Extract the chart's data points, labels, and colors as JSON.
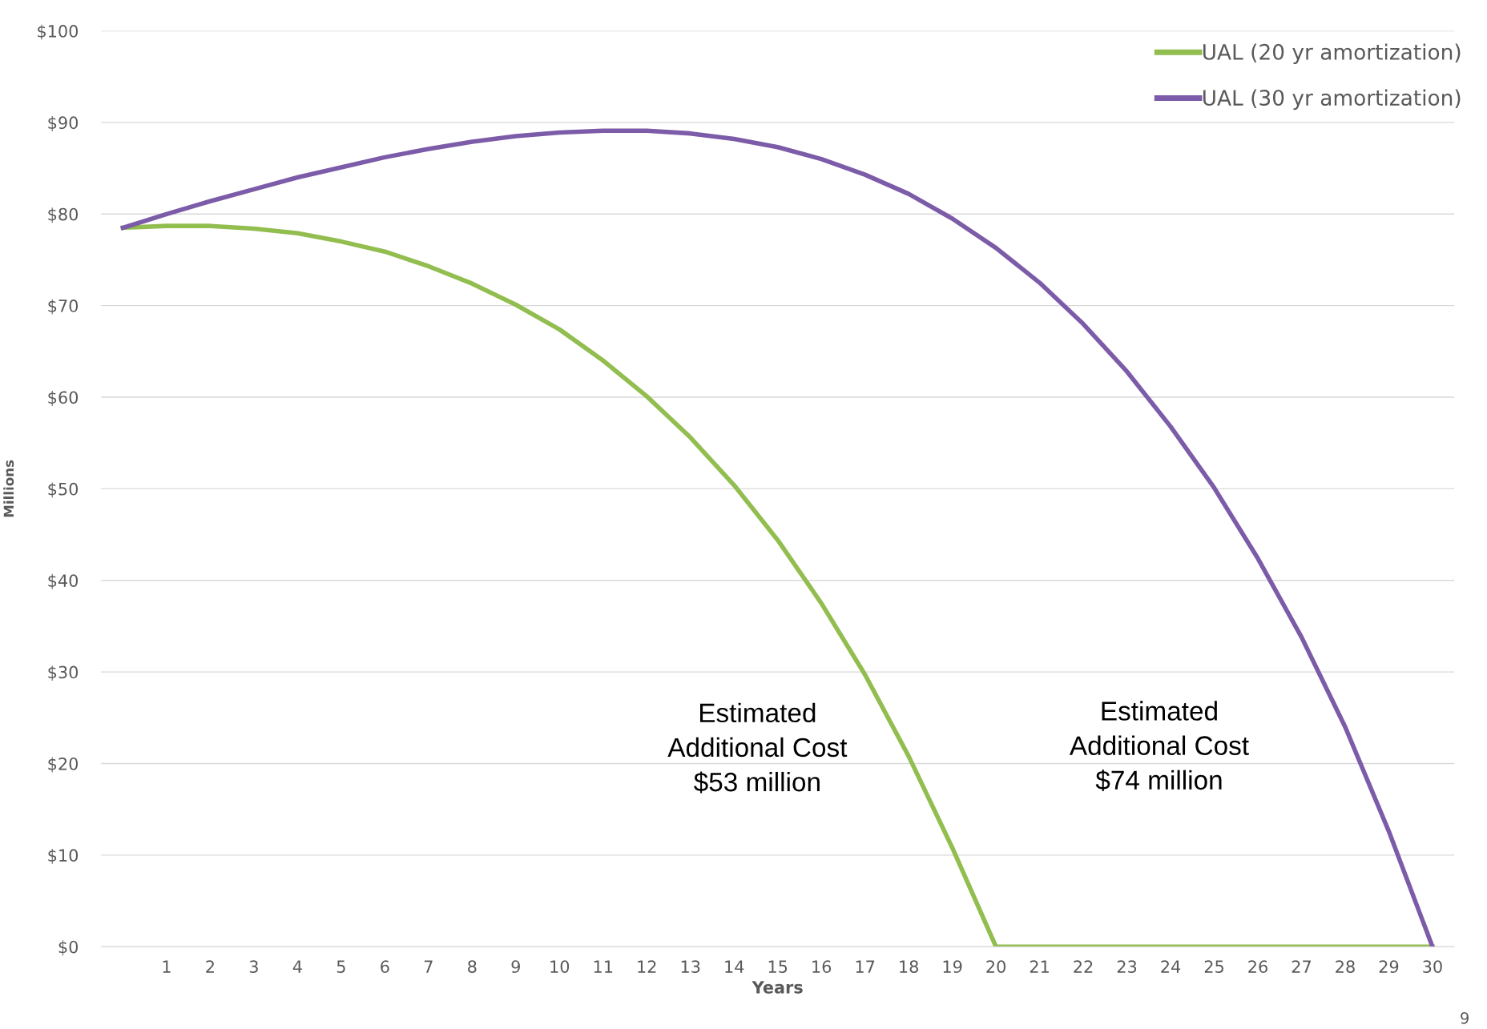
{
  "chart_data": {
    "type": "line",
    "xlabel": "Years",
    "ylabel": "Millions",
    "categories": [
      null,
      "1",
      "2",
      "3",
      "4",
      "5",
      "6",
      "7",
      "8",
      "9",
      "10",
      "11",
      "12",
      "13",
      "14",
      "15",
      "16",
      "17",
      "18",
      "19",
      "20",
      "21",
      "22",
      "23",
      "24",
      "25",
      "26",
      "27",
      "28",
      "29",
      "30"
    ],
    "series": [
      {
        "name": "UAL (20 yr amortization)",
        "color": "#92bd4f",
        "values": [
          78.5,
          78.7,
          78.7,
          78.4,
          77.9,
          77.0,
          75.9,
          74.3,
          72.4,
          70.1,
          67.4,
          64.0,
          60.1,
          55.6,
          50.4,
          44.4,
          37.5,
          29.7,
          20.8,
          10.8,
          0,
          0,
          0,
          0,
          0,
          0,
          0,
          0,
          0,
          0,
          0
        ]
      },
      {
        "name": "UAL (30 yr amortization)",
        "color": "#7c5ca8",
        "values": [
          78.5,
          80.0,
          81.4,
          82.7,
          84.0,
          85.1,
          86.2,
          87.1,
          87.9,
          88.5,
          88.9,
          89.1,
          89.1,
          88.8,
          88.2,
          87.3,
          86.0,
          84.3,
          82.2,
          79.5,
          76.3,
          72.5,
          68.0,
          62.8,
          56.8,
          50.1,
          42.4,
          33.8,
          24.0,
          12.6,
          0
        ]
      }
    ],
    "ylim": [
      0,
      100
    ],
    "yticks": [
      {
        "value": 0,
        "label": "$0"
      },
      {
        "value": 10,
        "label": "$10"
      },
      {
        "value": 20,
        "label": "$20"
      },
      {
        "value": 30,
        "label": "$30"
      },
      {
        "value": 40,
        "label": "$40"
      },
      {
        "value": 50,
        "label": "$50"
      },
      {
        "value": 60,
        "label": "$60"
      },
      {
        "value": 70,
        "label": "$70"
      },
      {
        "value": 80,
        "label": "$80"
      },
      {
        "value": 90,
        "label": "$90"
      },
      {
        "value": 100,
        "label": "$100"
      }
    ],
    "grid": "y",
    "legend": "top right",
    "marker": "none",
    "line_style": "solid",
    "annotations": [
      "Estimated\nAdditional Cost\n$53 million",
      "Estimated\nAdditional Cost\n$74 million",
      "9"
    ]
  }
}
